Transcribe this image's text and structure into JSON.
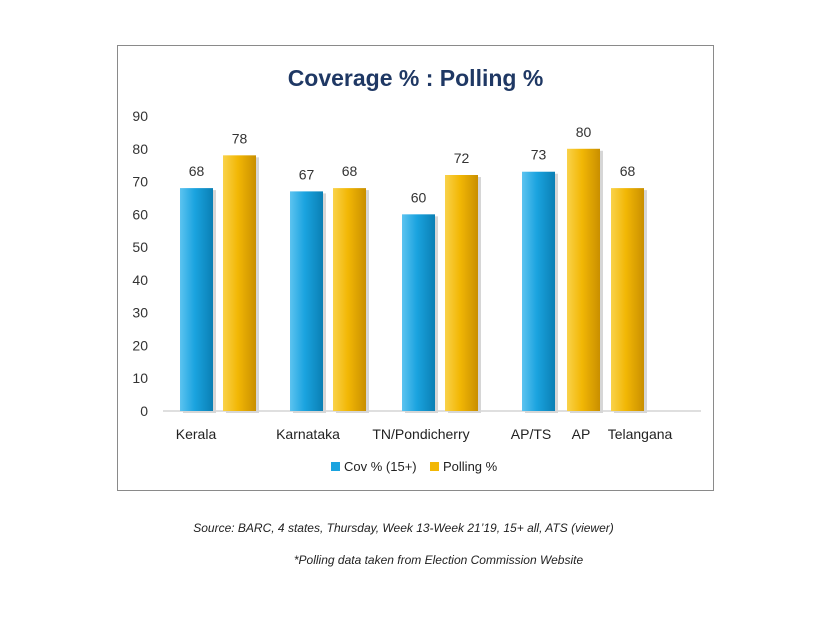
{
  "chart_data": {
    "type": "bar",
    "title": "Coverage % : Polling %",
    "ylim": [
      0,
      90
    ],
    "yticks": [
      0,
      10,
      20,
      30,
      40,
      50,
      60,
      70,
      80,
      90
    ],
    "series_info": [
      {
        "name": "Cov % (15+)",
        "color": "#1aa3df"
      },
      {
        "name": "Polling %",
        "color": "#f2b705"
      }
    ],
    "groups": [
      {
        "category": "Kerala",
        "bars": [
          {
            "series": "Cov % (15+)",
            "value": 68
          },
          {
            "series": "Polling %",
            "value": 78
          }
        ]
      },
      {
        "category": "Karnataka",
        "bars": [
          {
            "series": "Cov % (15+)",
            "value": 67
          },
          {
            "series": "Polling %",
            "value": 68
          }
        ]
      },
      {
        "category": "TN/Pondicherry",
        "bars": [
          {
            "series": "Cov % (15+)",
            "value": 60
          },
          {
            "series": "Polling %",
            "value": 72
          }
        ]
      },
      {
        "category": "AP/TS",
        "bars": [
          {
            "series": "Cov % (15+)",
            "value": 73
          }
        ]
      },
      {
        "category": "AP",
        "bars": [
          {
            "series": "Polling %",
            "value": 80
          }
        ]
      },
      {
        "category": "Telangana",
        "bars": [
          {
            "series": "Polling %",
            "value": 68
          }
        ]
      }
    ],
    "legend_position": "bottom"
  },
  "notes": {
    "source": "Source: BARC, 4 states, Thursday, Week 13-Week 21’19, 15+ all, ATS (viewer)",
    "polling": "*Polling data taken from Election Commission Website"
  }
}
